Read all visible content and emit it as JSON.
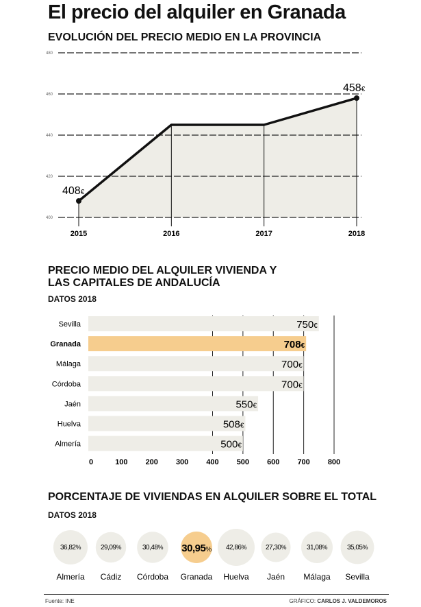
{
  "title": "El precio del alquiler en Granada",
  "accent_color": "#f6cd8e",
  "fill_color": "#eeede7",
  "highlight": "Granada",
  "chart_data": [
    {
      "type": "line",
      "title": "EVOLUCIÓN DEL PRECIO MEDIO EN LA PROVINCIA",
      "x": [
        "2015",
        "2016",
        "2017",
        "2018"
      ],
      "values": [
        408,
        445,
        445,
        458
      ],
      "ylim": [
        400,
        480
      ],
      "yticks": [
        400,
        420,
        440,
        460,
        480
      ],
      "grid": true,
      "annotations": [
        {
          "index": 0,
          "label": "408",
          "unit": "€"
        },
        {
          "index": 3,
          "label": "458",
          "unit": "€"
        }
      ]
    },
    {
      "type": "bar",
      "title": "PRECIO MEDIO DEL ALQUILER VIVIENDA Y LAS CAPITALES DE ANDALUCÍA",
      "title_lines": [
        "PRECIO MEDIO DEL ALQUILER VIVIENDA Y",
        "LAS CAPITALES DE ANDALUCÍA"
      ],
      "subtitle": "DATOS 2018",
      "categories": [
        "Sevilla",
        "Granada",
        "Málaga",
        "Córdoba",
        "Jaén",
        "Huelva",
        "Almería"
      ],
      "values": [
        750,
        708,
        700,
        700,
        550,
        508,
        500
      ],
      "unit": "€",
      "xlim": [
        0,
        800
      ],
      "xticks": [
        0,
        100,
        200,
        300,
        400,
        500,
        600,
        700,
        800
      ]
    },
    {
      "type": "bubble",
      "title": "PORCENTAJE DE VIVIENDAS EN ALQUILER SOBRE EL TOTAL",
      "subtitle": "DATOS 2018",
      "categories": [
        "Almería",
        "Cádiz",
        "Córdoba",
        "Granada",
        "Huelva",
        "Jaén",
        "Málaga",
        "Sevilla"
      ],
      "values": [
        36.82,
        29.09,
        30.48,
        30.95,
        42.86,
        27.3,
        31.08,
        35.05
      ],
      "labels": [
        "36,82",
        "29,09",
        "30,48",
        "30,95",
        "42,86",
        "27,30",
        "31,08",
        "35,05"
      ],
      "unit": "%"
    }
  ],
  "footer": {
    "source": "Fuente: INE",
    "credit_prefix": "GRÁFICO:",
    "credit_name": "CARLOS J. VALDEMOROS"
  }
}
